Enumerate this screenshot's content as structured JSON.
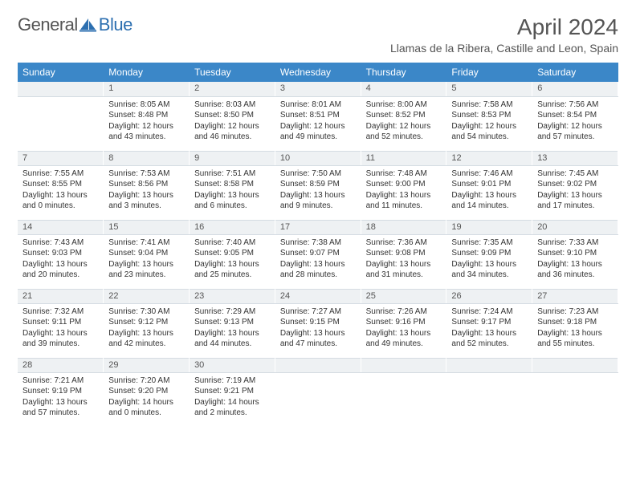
{
  "logo": {
    "text1": "General",
    "text2": "Blue"
  },
  "title": "April 2024",
  "location": "Llamas de la Ribera, Castille and Leon, Spain",
  "colors": {
    "header_bg": "#3b87c8",
    "header_fg": "#ffffff",
    "daynum_bg": "#eef1f3",
    "text": "#333333"
  },
  "weekdays": [
    "Sunday",
    "Monday",
    "Tuesday",
    "Wednesday",
    "Thursday",
    "Friday",
    "Saturday"
  ],
  "weeks": [
    {
      "nums": [
        "",
        "1",
        "2",
        "3",
        "4",
        "5",
        "6"
      ],
      "cells": [
        [],
        [
          "Sunrise: 8:05 AM",
          "Sunset: 8:48 PM",
          "Daylight: 12 hours",
          "and 43 minutes."
        ],
        [
          "Sunrise: 8:03 AM",
          "Sunset: 8:50 PM",
          "Daylight: 12 hours",
          "and 46 minutes."
        ],
        [
          "Sunrise: 8:01 AM",
          "Sunset: 8:51 PM",
          "Daylight: 12 hours",
          "and 49 minutes."
        ],
        [
          "Sunrise: 8:00 AM",
          "Sunset: 8:52 PM",
          "Daylight: 12 hours",
          "and 52 minutes."
        ],
        [
          "Sunrise: 7:58 AM",
          "Sunset: 8:53 PM",
          "Daylight: 12 hours",
          "and 54 minutes."
        ],
        [
          "Sunrise: 7:56 AM",
          "Sunset: 8:54 PM",
          "Daylight: 12 hours",
          "and 57 minutes."
        ]
      ]
    },
    {
      "nums": [
        "7",
        "8",
        "9",
        "10",
        "11",
        "12",
        "13"
      ],
      "cells": [
        [
          "Sunrise: 7:55 AM",
          "Sunset: 8:55 PM",
          "Daylight: 13 hours",
          "and 0 minutes."
        ],
        [
          "Sunrise: 7:53 AM",
          "Sunset: 8:56 PM",
          "Daylight: 13 hours",
          "and 3 minutes."
        ],
        [
          "Sunrise: 7:51 AM",
          "Sunset: 8:58 PM",
          "Daylight: 13 hours",
          "and 6 minutes."
        ],
        [
          "Sunrise: 7:50 AM",
          "Sunset: 8:59 PM",
          "Daylight: 13 hours",
          "and 9 minutes."
        ],
        [
          "Sunrise: 7:48 AM",
          "Sunset: 9:00 PM",
          "Daylight: 13 hours",
          "and 11 minutes."
        ],
        [
          "Sunrise: 7:46 AM",
          "Sunset: 9:01 PM",
          "Daylight: 13 hours",
          "and 14 minutes."
        ],
        [
          "Sunrise: 7:45 AM",
          "Sunset: 9:02 PM",
          "Daylight: 13 hours",
          "and 17 minutes."
        ]
      ]
    },
    {
      "nums": [
        "14",
        "15",
        "16",
        "17",
        "18",
        "19",
        "20"
      ],
      "cells": [
        [
          "Sunrise: 7:43 AM",
          "Sunset: 9:03 PM",
          "Daylight: 13 hours",
          "and 20 minutes."
        ],
        [
          "Sunrise: 7:41 AM",
          "Sunset: 9:04 PM",
          "Daylight: 13 hours",
          "and 23 minutes."
        ],
        [
          "Sunrise: 7:40 AM",
          "Sunset: 9:05 PM",
          "Daylight: 13 hours",
          "and 25 minutes."
        ],
        [
          "Sunrise: 7:38 AM",
          "Sunset: 9:07 PM",
          "Daylight: 13 hours",
          "and 28 minutes."
        ],
        [
          "Sunrise: 7:36 AM",
          "Sunset: 9:08 PM",
          "Daylight: 13 hours",
          "and 31 minutes."
        ],
        [
          "Sunrise: 7:35 AM",
          "Sunset: 9:09 PM",
          "Daylight: 13 hours",
          "and 34 minutes."
        ],
        [
          "Sunrise: 7:33 AM",
          "Sunset: 9:10 PM",
          "Daylight: 13 hours",
          "and 36 minutes."
        ]
      ]
    },
    {
      "nums": [
        "21",
        "22",
        "23",
        "24",
        "25",
        "26",
        "27"
      ],
      "cells": [
        [
          "Sunrise: 7:32 AM",
          "Sunset: 9:11 PM",
          "Daylight: 13 hours",
          "and 39 minutes."
        ],
        [
          "Sunrise: 7:30 AM",
          "Sunset: 9:12 PM",
          "Daylight: 13 hours",
          "and 42 minutes."
        ],
        [
          "Sunrise: 7:29 AM",
          "Sunset: 9:13 PM",
          "Daylight: 13 hours",
          "and 44 minutes."
        ],
        [
          "Sunrise: 7:27 AM",
          "Sunset: 9:15 PM",
          "Daylight: 13 hours",
          "and 47 minutes."
        ],
        [
          "Sunrise: 7:26 AM",
          "Sunset: 9:16 PM",
          "Daylight: 13 hours",
          "and 49 minutes."
        ],
        [
          "Sunrise: 7:24 AM",
          "Sunset: 9:17 PM",
          "Daylight: 13 hours",
          "and 52 minutes."
        ],
        [
          "Sunrise: 7:23 AM",
          "Sunset: 9:18 PM",
          "Daylight: 13 hours",
          "and 55 minutes."
        ]
      ]
    },
    {
      "nums": [
        "28",
        "29",
        "30",
        "",
        "",
        "",
        ""
      ],
      "cells": [
        [
          "Sunrise: 7:21 AM",
          "Sunset: 9:19 PM",
          "Daylight: 13 hours",
          "and 57 minutes."
        ],
        [
          "Sunrise: 7:20 AM",
          "Sunset: 9:20 PM",
          "Daylight: 14 hours",
          "and 0 minutes."
        ],
        [
          "Sunrise: 7:19 AM",
          "Sunset: 9:21 PM",
          "Daylight: 14 hours",
          "and 2 minutes."
        ],
        [],
        [],
        [],
        []
      ]
    }
  ]
}
